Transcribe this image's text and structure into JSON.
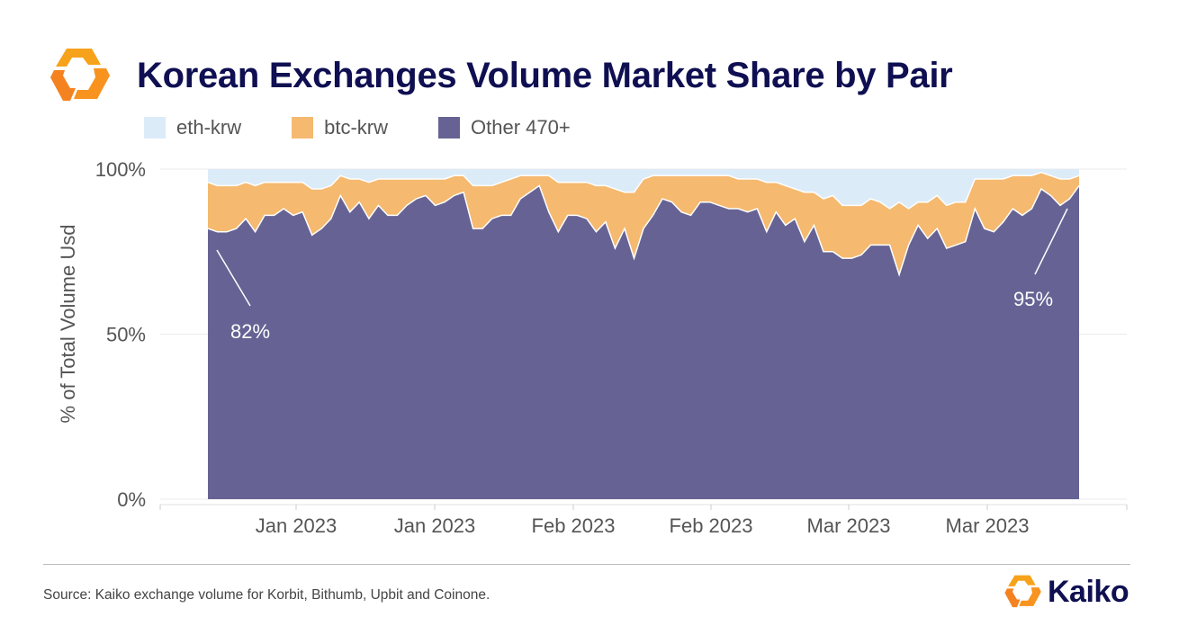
{
  "title": "Korean Exchanges Volume Market Share by Pair",
  "source": "Source: Kaiko exchange volume for Korbit, Bithumb, Upbit and Coinone.",
  "brand": "Kaiko",
  "colors": {
    "eth": "#dcebf8",
    "btc": "#f5b96f",
    "other": "#666394",
    "title": "#0f0f52",
    "logo_orange": "#f7931e"
  },
  "legend": [
    {
      "label": "eth-krw",
      "color": "#dcebf8"
    },
    {
      "label": "btc-krw",
      "color": "#f5b96f"
    },
    {
      "label": "Other 470+",
      "color": "#666394"
    }
  ],
  "chart_data": {
    "type": "area",
    "stacked": true,
    "ylabel": "% of Total Volume Usd",
    "xlabel": "",
    "ylim": [
      0,
      100
    ],
    "y_ticks": [
      "0%",
      "50%",
      "100%"
    ],
    "x_ticks": [
      "Jan 2023",
      "Jan 2023",
      "Feb 2023",
      "Feb 2023",
      "Mar 2023",
      "Mar 2023"
    ],
    "x_start": "2022-12-22",
    "x_end": "2023-03-29",
    "grid": true,
    "legend_position": "top-left",
    "series": [
      {
        "name": "Other 470+",
        "values": [
          82,
          81,
          81,
          82,
          85,
          81,
          86,
          86,
          88,
          86,
          87,
          80,
          82,
          85,
          92,
          87,
          90,
          85,
          89,
          86,
          86,
          89,
          91,
          92,
          89,
          90,
          92,
          93,
          82,
          82,
          85,
          86,
          86,
          91,
          93,
          95,
          87,
          81,
          86,
          86,
          85,
          81,
          84,
          76,
          82,
          73,
          82,
          86,
          91,
          90,
          87,
          86,
          90,
          90,
          89,
          88,
          88,
          87,
          88,
          81,
          87,
          83,
          85,
          78,
          83,
          75,
          75,
          73,
          73,
          74,
          77,
          77,
          77,
          68,
          77,
          83,
          79,
          82,
          76,
          77,
          78,
          88,
          82,
          81,
          84,
          88,
          86,
          88,
          94,
          92,
          89,
          91,
          95
        ]
      },
      {
        "name": "btc-krw",
        "values": [
          14,
          14,
          14,
          13,
          11,
          14,
          10,
          10,
          8,
          10,
          9,
          14,
          12,
          10,
          6,
          10,
          7,
          11,
          8,
          11,
          11,
          8,
          6,
          5,
          8,
          7,
          6,
          5,
          13,
          13,
          10,
          10,
          11,
          7,
          5,
          3,
          11,
          15,
          10,
          10,
          11,
          14,
          11,
          18,
          11,
          20,
          15,
          12,
          7,
          8,
          11,
          12,
          8,
          8,
          9,
          10,
          9,
          10,
          9,
          15,
          9,
          12,
          9,
          15,
          10,
          16,
          17,
          16,
          16,
          15,
          14,
          13,
          11,
          22,
          11,
          7,
          11,
          10,
          13,
          13,
          12,
          9,
          15,
          16,
          13,
          10,
          12,
          10,
          5,
          6,
          8,
          6,
          3
        ]
      },
      {
        "name": "eth-krw",
        "values": [
          4,
          5,
          5,
          5,
          4,
          5,
          4,
          4,
          4,
          4,
          4,
          6,
          6,
          5,
          2,
          3,
          3,
          4,
          3,
          3,
          3,
          3,
          3,
          3,
          3,
          3,
          2,
          2,
          5,
          5,
          5,
          4,
          3,
          2,
          2,
          2,
          2,
          4,
          4,
          4,
          4,
          5,
          5,
          6,
          7,
          7,
          3,
          2,
          2,
          2,
          2,
          2,
          2,
          2,
          2,
          2,
          3,
          3,
          3,
          4,
          4,
          5,
          6,
          7,
          7,
          9,
          8,
          11,
          11,
          11,
          9,
          10,
          12,
          10,
          12,
          10,
          10,
          8,
          11,
          10,
          10,
          3,
          3,
          3,
          3,
          2,
          2,
          2,
          1,
          2,
          3,
          3,
          2
        ]
      }
    ],
    "annotations": [
      {
        "text": "82%",
        "series": "Other 470+",
        "index": 0
      },
      {
        "text": "95%",
        "series": "Other 470+",
        "index": 92
      }
    ]
  }
}
